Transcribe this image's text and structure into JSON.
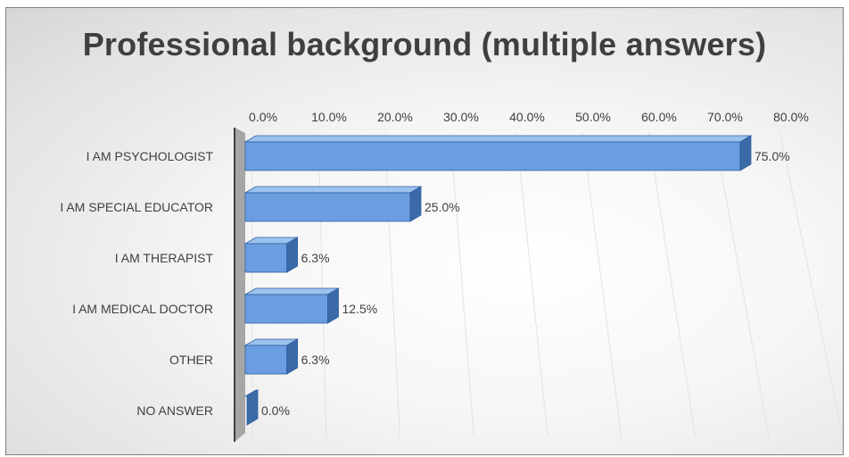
{
  "chart_data": {
    "type": "bar",
    "orientation": "horizontal",
    "title": "Professional background (multiple answers)",
    "categories": [
      "I AM PSYCHOLOGIST",
      "I AM SPECIAL EDUCATOR",
      "I AM THERAPIST",
      "I AM MEDICAL DOCTOR",
      "OTHER",
      "NO ANSWER"
    ],
    "values": [
      75.0,
      25.0,
      6.3,
      12.5,
      6.3,
      0.0
    ],
    "data_labels": [
      "75.0%",
      "25.0%",
      "6.3%",
      "12.5%",
      "6.3%",
      "0.0%"
    ],
    "xlim": [
      0,
      80
    ],
    "x_ticks": [
      "0.0%",
      "10.0%",
      "20.0%",
      "30.0%",
      "40.0%",
      "50.0%",
      "60.0%",
      "70.0%",
      "80.0%"
    ],
    "x_axis_position": "top",
    "grid": true,
    "legend": "none",
    "style": "3d",
    "colors": {
      "bar_front": "#6a9ee0",
      "bar_side": "#3a6aa8",
      "bar_top": "#9cc2ee",
      "bar_stroke": "#2f5f9f"
    }
  }
}
